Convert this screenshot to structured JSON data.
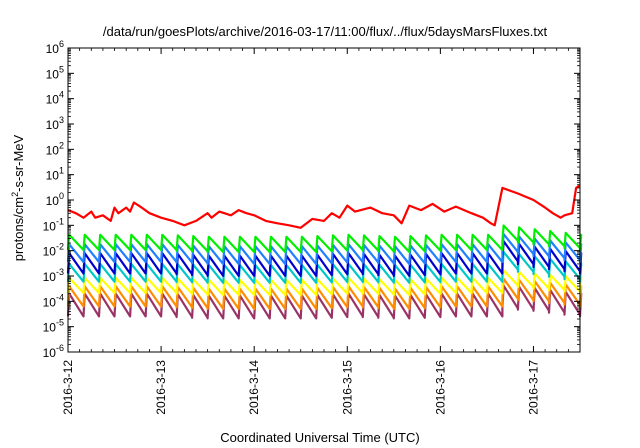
{
  "chart_data": {
    "type": "line",
    "title": "/data/run/goesPlots/archive/2016-03-17/11:00/flux/../flux/5daysMarsFluxes.txt",
    "xlabel": "Coordinated Universal Time (UTC)",
    "ylabel_main": "protons/cm",
    "ylabel_sup": "2",
    "ylabel_rest": "-s-sr-MeV",
    "y_scale": "log",
    "ylim": [
      1e-06,
      1000000.0
    ],
    "y_ticks": [
      {
        "base": "10",
        "exp": "-6"
      },
      {
        "base": "10",
        "exp": "-5"
      },
      {
        "base": "10",
        "exp": "-4"
      },
      {
        "base": "10",
        "exp": "-3"
      },
      {
        "base": "10",
        "exp": "-2"
      },
      {
        "base": "10",
        "exp": "-1"
      },
      {
        "base": "10",
        "exp": "0"
      },
      {
        "base": "10",
        "exp": "1"
      },
      {
        "base": "10",
        "exp": "2"
      },
      {
        "base": "10",
        "exp": "3"
      },
      {
        "base": "10",
        "exp": "4"
      },
      {
        "base": "10",
        "exp": "5"
      },
      {
        "base": "10",
        "exp": "6"
      }
    ],
    "xlim": [
      "2016-03-12",
      "2016-03-17T12:00"
    ],
    "x_ticks": [
      "2016-3-12",
      "2016-3-13",
      "2016-3-14",
      "2016-3-15",
      "2016-3-16",
      "2016-3-17"
    ],
    "grid": false,
    "legend": "none",
    "series": [
      {
        "color": "#ff0000",
        "x": [
          "2016-03-12T00:00",
          "2016-03-12T02:00",
          "2016-03-12T04:00",
          "2016-03-12T06:00",
          "2016-03-12T07:00",
          "2016-03-12T09:00",
          "2016-03-12T11:00",
          "2016-03-12T12:00",
          "2016-03-12T13:00",
          "2016-03-12T15:00",
          "2016-03-12T16:00",
          "2016-03-12T17:00",
          "2016-03-12T19:00",
          "2016-03-12T21:00",
          "2016-03-13T00:00",
          "2016-03-13T03:00",
          "2016-03-13T06:00",
          "2016-03-13T09:00",
          "2016-03-13T12:00",
          "2016-03-13T13:00",
          "2016-03-13T15:00",
          "2016-03-13T18:00",
          "2016-03-13T20:00",
          "2016-03-13T22:00",
          "2016-03-14T00:00",
          "2016-03-14T03:00",
          "2016-03-14T06:00",
          "2016-03-14T09:00",
          "2016-03-14T12:00",
          "2016-03-14T15:00",
          "2016-03-14T18:00",
          "2016-03-14T20:00",
          "2016-03-14T22:00",
          "2016-03-15T00:00",
          "2016-03-15T02:00",
          "2016-03-15T06:00",
          "2016-03-15T09:00",
          "2016-03-15T12:00",
          "2016-03-15T14:00",
          "2016-03-15T16:00",
          "2016-03-15T19:00",
          "2016-03-15T22:00",
          "2016-03-16T01:00",
          "2016-03-16T04:00",
          "2016-03-16T08:00",
          "2016-03-16T11:00",
          "2016-03-16T13:00",
          "2016-03-16T14:00",
          "2016-03-16T16:00",
          "2016-03-16T20:00",
          "2016-03-17T00:00",
          "2016-03-17T03:00",
          "2016-03-17T05:00",
          "2016-03-17T07:00",
          "2016-03-17T08:00",
          "2016-03-17T10:00",
          "2016-03-17T11:00",
          "2016-03-17T12:00"
        ],
        "y": [
          0.4,
          0.3,
          0.2,
          0.35,
          0.2,
          0.25,
          0.15,
          0.5,
          0.3,
          0.5,
          0.35,
          0.8,
          0.5,
          0.3,
          0.2,
          0.15,
          0.1,
          0.15,
          0.3,
          0.2,
          0.35,
          0.25,
          0.4,
          0.3,
          0.25,
          0.15,
          0.12,
          0.1,
          0.08,
          0.18,
          0.15,
          0.3,
          0.2,
          0.6,
          0.35,
          0.5,
          0.3,
          0.25,
          0.12,
          0.6,
          0.4,
          0.7,
          0.35,
          0.55,
          0.3,
          0.2,
          0.12,
          0.1,
          3.0,
          1.8,
          1.0,
          0.5,
          0.3,
          0.2,
          0.25,
          0.3,
          3.0,
          3.8
        ]
      },
      {
        "color": "#00ee00",
        "x": [
          "2016-03-12T00:00",
          "2016-03-12T12:00",
          "2016-03-13T00:00",
          "2016-03-13T12:00",
          "2016-03-14T00:00",
          "2016-03-14T12:00",
          "2016-03-15T00:00",
          "2016-03-15T12:00",
          "2016-03-16T00:00",
          "2016-03-16T12:00",
          "2016-03-16T16:00",
          "2016-03-17T00:00",
          "2016-03-17T12:00"
        ],
        "y": [
          0.03,
          0.03,
          0.03,
          0.025,
          0.025,
          0.025,
          0.03,
          0.025,
          0.03,
          0.03,
          0.07,
          0.05,
          0.03
        ]
      },
      {
        "color": "#2080ff",
        "x": [
          "2016-03-12T00:00",
          "2016-03-12T12:00",
          "2016-03-13T00:00",
          "2016-03-13T12:00",
          "2016-03-14T00:00",
          "2016-03-14T12:00",
          "2016-03-15T00:00",
          "2016-03-15T12:00",
          "2016-03-16T00:00",
          "2016-03-16T12:00",
          "2016-03-16T16:00",
          "2016-03-17T00:00",
          "2016-03-17T12:00"
        ],
        "y": [
          0.012,
          0.012,
          0.012,
          0.01,
          0.01,
          0.01,
          0.012,
          0.01,
          0.012,
          0.012,
          0.03,
          0.02,
          0.012
        ]
      },
      {
        "color": "#0000cc",
        "x": [
          "2016-03-12T00:00",
          "2016-03-12T12:00",
          "2016-03-13T00:00",
          "2016-03-13T12:00",
          "2016-03-14T00:00",
          "2016-03-14T12:00",
          "2016-03-15T00:00",
          "2016-03-15T12:00",
          "2016-03-16T00:00",
          "2016-03-16T12:00",
          "2016-03-16T16:00",
          "2016-03-17T00:00",
          "2016-03-17T12:00"
        ],
        "y": [
          0.005,
          0.005,
          0.005,
          0.004,
          0.004,
          0.004,
          0.005,
          0.004,
          0.005,
          0.005,
          0.015,
          0.009,
          0.005
        ]
      },
      {
        "color": "#00c8c8",
        "x": [
          "2016-03-12T00:00",
          "2016-03-12T12:00",
          "2016-03-13T00:00",
          "2016-03-13T12:00",
          "2016-03-14T00:00",
          "2016-03-14T12:00",
          "2016-03-15T00:00",
          "2016-03-15T12:00",
          "2016-03-16T00:00",
          "2016-03-16T12:00",
          "2016-03-16T16:00",
          "2016-03-17T00:00",
          "2016-03-17T12:00"
        ],
        "y": [
          0.002,
          0.002,
          0.002,
          0.0018,
          0.0018,
          0.0018,
          0.002,
          0.0018,
          0.002,
          0.002,
          0.006,
          0.004,
          0.002
        ]
      },
      {
        "color": "#ffff00",
        "x": [
          "2016-03-12T00:00",
          "2016-03-12T12:00",
          "2016-03-13T00:00",
          "2016-03-13T12:00",
          "2016-03-14T00:00",
          "2016-03-14T12:00",
          "2016-03-15T00:00",
          "2016-03-15T12:00",
          "2016-03-16T00:00",
          "2016-03-16T12:00",
          "2016-03-16T16:00",
          "2016-03-17T00:00",
          "2016-03-17T12:00"
        ],
        "y": [
          0.0006,
          0.0006,
          0.0006,
          0.0005,
          0.0005,
          0.0005,
          0.0006,
          0.0005,
          0.0006,
          0.0006,
          0.0012,
          0.0009,
          0.0006
        ]
      },
      {
        "color": "#ff8c00",
        "x": [
          "2016-03-12T00:00",
          "2016-03-12T12:00",
          "2016-03-13T00:00",
          "2016-03-13T12:00",
          "2016-03-14T00:00",
          "2016-03-14T12:00",
          "2016-03-15T00:00",
          "2016-03-15T12:00",
          "2016-03-16T00:00",
          "2016-03-16T12:00",
          "2016-03-16T16:00",
          "2016-03-17T00:00",
          "2016-03-17T12:00"
        ],
        "y": [
          0.00025,
          0.00025,
          0.00025,
          0.0002,
          0.0002,
          0.0002,
          0.00025,
          0.0002,
          0.00025,
          0.00025,
          0.0005,
          0.0004,
          0.00025
        ]
      },
      {
        "color": "#993366",
        "x": [
          "2016-03-12T00:00",
          "2016-03-12T12:00",
          "2016-03-13T00:00",
          "2016-03-13T12:00",
          "2016-03-14T00:00",
          "2016-03-14T12:00",
          "2016-03-15T00:00",
          "2016-03-15T12:00",
          "2016-03-16T00:00",
          "2016-03-16T12:00",
          "2016-03-16T16:00",
          "2016-03-17T00:00",
          "2016-03-17T12:00"
        ],
        "y": [
          0.00012,
          0.00012,
          0.00012,
          0.0001,
          0.0001,
          0.0001,
          0.00012,
          0.0001,
          0.00012,
          0.00012,
          0.00025,
          0.0002,
          0.00012
        ]
      }
    ]
  }
}
